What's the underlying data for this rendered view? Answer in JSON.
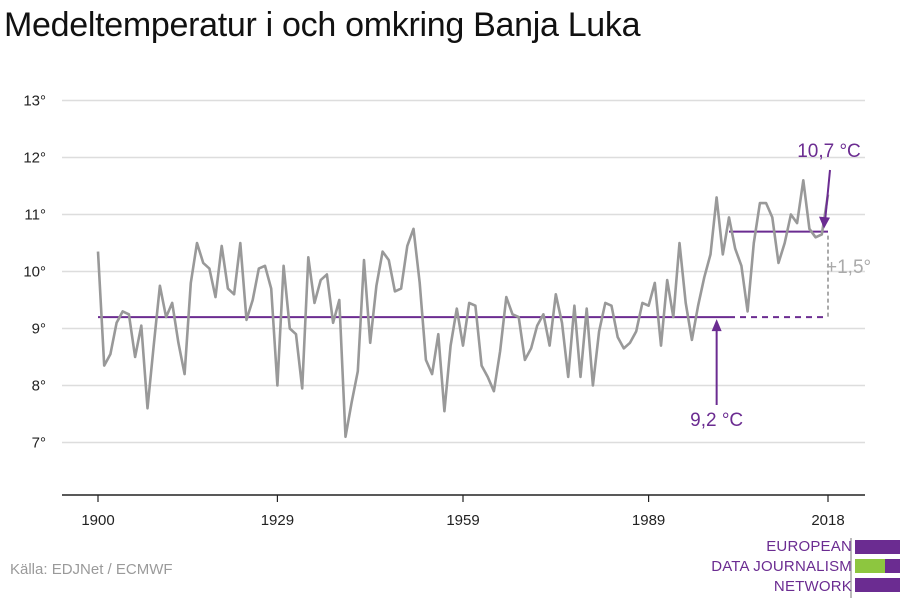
{
  "title": "Medeltemperatur i och omkring Banja Luka",
  "source": "Källa: EDJNet / ECMWF",
  "logo": {
    "lines": [
      "EUROPEAN",
      "DATA JOURNALISM",
      "NETWORK"
    ],
    "colors": {
      "purple": "#6b2c91",
      "green": "#8dc63f"
    }
  },
  "chart_data": {
    "type": "line",
    "title": "Medeltemperatur i och omkring Banja Luka",
    "xlabel": "",
    "ylabel": "",
    "xlim": [
      1900,
      2018
    ],
    "ylim": [
      6,
      13.3
    ],
    "yticks": [
      7,
      8,
      9,
      10,
      11,
      12,
      13
    ],
    "ytick_labels": [
      "7°",
      "8°",
      "9°",
      "10°",
      "11°",
      "12°",
      "13°"
    ],
    "xticks": [
      1900,
      1929,
      1959,
      1989,
      2018
    ],
    "xtick_labels": [
      "1900",
      "1929",
      "1959",
      "1989",
      "2018"
    ],
    "grid": true,
    "line_color": "#999999",
    "series": [
      {
        "x": [
          1900,
          1901,
          1902,
          1903,
          1904,
          1905,
          1906,
          1907,
          1908,
          1909,
          1910,
          1911,
          1912,
          1913,
          1914,
          1915,
          1916,
          1917,
          1918,
          1919,
          1920,
          1921,
          1922,
          1923,
          1924,
          1925,
          1926,
          1927,
          1928,
          1929,
          1930,
          1931,
          1932,
          1933,
          1934,
          1935,
          1936,
          1937,
          1938,
          1939,
          1940,
          1941,
          1942,
          1943,
          1944,
          1945,
          1946,
          1947,
          1948,
          1949,
          1950,
          1951,
          1952,
          1953,
          1954,
          1955,
          1956,
          1957,
          1958,
          1959,
          1960,
          1961,
          1962,
          1963,
          1964,
          1965,
          1966,
          1967,
          1968,
          1969,
          1970,
          1971,
          1972,
          1973,
          1974,
          1975,
          1976,
          1977,
          1978,
          1979,
          1980,
          1981,
          1982,
          1983,
          1984,
          1985,
          1986,
          1987,
          1988,
          1989,
          1990,
          1991,
          1992,
          1993,
          1994,
          1995,
          1996,
          1997,
          1998,
          1999,
          2000,
          2001,
          2002,
          2003,
          2004,
          2005,
          2006,
          2007,
          2008,
          2009,
          2010,
          2011,
          2012,
          2013,
          2014,
          2015,
          2016,
          2017,
          2018
        ],
        "values": [
          10.35,
          8.35,
          8.55,
          9.1,
          9.3,
          9.25,
          8.5,
          9.05,
          7.6,
          8.7,
          9.75,
          9.2,
          9.45,
          8.75,
          8.2,
          9.8,
          10.5,
          10.15,
          10.05,
          9.55,
          10.45,
          9.7,
          9.6,
          10.5,
          9.15,
          9.5,
          10.05,
          10.1,
          9.7,
          8.0,
          10.1,
          9.0,
          8.9,
          7.95,
          10.25,
          9.45,
          9.85,
          9.95,
          9.1,
          9.5,
          7.1,
          7.7,
          8.25,
          10.2,
          8.75,
          9.75,
          10.35,
          10.2,
          9.65,
          9.7,
          10.45,
          10.75,
          9.8,
          8.45,
          8.2,
          8.9,
          7.55,
          8.7,
          9.35,
          8.7,
          9.45,
          9.4,
          8.35,
          8.15,
          7.9,
          8.6,
          9.55,
          9.25,
          9.2,
          8.45,
          8.65,
          9.05,
          9.25,
          8.7,
          9.6,
          9.1,
          8.15,
          9.4,
          8.15,
          9.35,
          8.0,
          8.95,
          9.45,
          9.4,
          8.85,
          8.65,
          8.75,
          8.95,
          9.45,
          9.4,
          9.8,
          8.7,
          9.85,
          9.2,
          10.5,
          9.45,
          8.8,
          9.4,
          9.9,
          10.3,
          11.3,
          10.3,
          10.95,
          10.4,
          10.1,
          9.3,
          10.5,
          11.2,
          11.2,
          10.95,
          10.15,
          10.5,
          11.0,
          10.85,
          11.6,
          10.75,
          10.6,
          10.65,
          11.35
        ]
      }
    ],
    "annotations": [
      {
        "label": "9,2 °C",
        "value": 9.2,
        "x_start": 1900,
        "x_end": 2018,
        "solid_until": 2002,
        "color": "#6b2c91"
      },
      {
        "label": "10,7 °C",
        "value": 10.7,
        "x_start": 2002,
        "x_end": 2018,
        "color": "#6b2c91"
      },
      {
        "label": "+1,5°",
        "color": "#aaaaaa"
      }
    ]
  }
}
